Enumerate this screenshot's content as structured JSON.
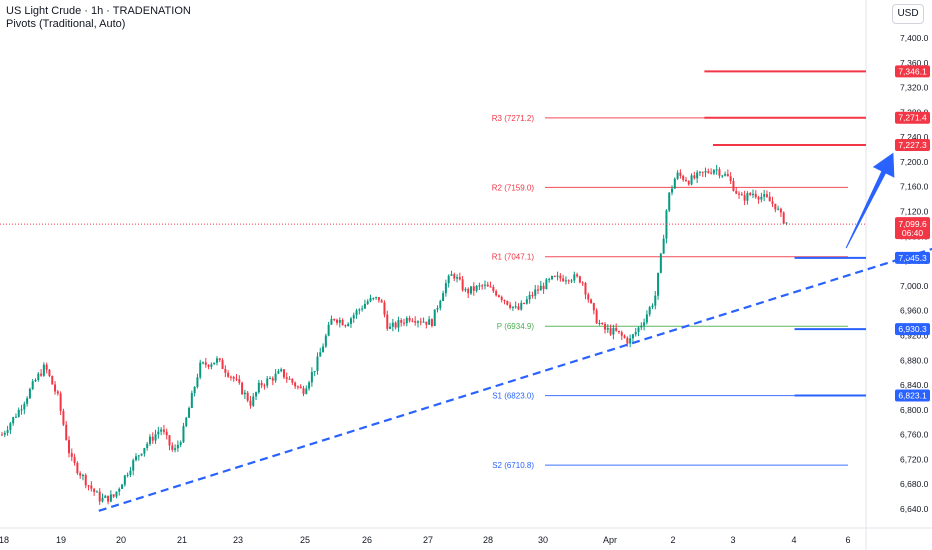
{
  "header": {
    "title": "US Light Crude · 1h · TRADENATION",
    "subtitle": "Pivots (Traditional, Auto)"
  },
  "currency_button": "USD",
  "colors": {
    "up": "#089981",
    "down": "#f23645",
    "pivot_red": "#f23645",
    "pivot_green": "#4caf50",
    "pivot_blue": "#2962ff",
    "trendline": "#2962ff",
    "arrow": "#2962ff"
  },
  "chart_data": {
    "type": "candlestick",
    "symbol": "US Light Crude",
    "interval": "1h",
    "ylim": [
      6620,
      7430
    ],
    "y_ticks": [
      "7,400.0",
      "7,360.0",
      "7,320.0",
      "7,280.0",
      "7,240.0",
      "7,200.0",
      "7,160.0",
      "7,120.0",
      "7,080.0",
      "7,040.0",
      "7,000.0",
      "6,960.0",
      "6,920.0",
      "6,880.0",
      "6,840.0",
      "6,800.0",
      "6,760.0",
      "6,720.0",
      "6,680.0",
      "6,640.0"
    ],
    "x_ticks": [
      "18",
      "19",
      "20",
      "21",
      "23",
      "25",
      "26",
      "27",
      "28",
      "30",
      "Apr",
      "2",
      "3",
      "4",
      "6"
    ],
    "close_path": [
      {
        "x": 0.0,
        "y": 6760
      },
      {
        "x": 0.4,
        "y": 6800
      },
      {
        "x": 0.8,
        "y": 6850
      },
      {
        "x": 1.0,
        "y": 6870
      },
      {
        "x": 1.3,
        "y": 6820
      },
      {
        "x": 1.6,
        "y": 6720
      },
      {
        "x": 2.0,
        "y": 6680
      },
      {
        "x": 2.3,
        "y": 6655
      },
      {
        "x": 2.6,
        "y": 6660
      },
      {
        "x": 3.0,
        "y": 6710
      },
      {
        "x": 3.3,
        "y": 6740
      },
      {
        "x": 3.7,
        "y": 6770
      },
      {
        "x": 4.0,
        "y": 6730
      },
      {
        "x": 4.2,
        "y": 6760
      },
      {
        "x": 4.6,
        "y": 6870
      },
      {
        "x": 5.0,
        "y": 6880
      },
      {
        "x": 5.4,
        "y": 6850
      },
      {
        "x": 5.8,
        "y": 6810
      },
      {
        "x": 6.0,
        "y": 6840
      },
      {
        "x": 6.5,
        "y": 6860
      },
      {
        "x": 7.0,
        "y": 6830
      },
      {
        "x": 7.3,
        "y": 6870
      },
      {
        "x": 7.7,
        "y": 6950
      },
      {
        "x": 8.0,
        "y": 6940
      },
      {
        "x": 8.5,
        "y": 6975
      },
      {
        "x": 8.8,
        "y": 6980
      },
      {
        "x": 9.0,
        "y": 6930
      },
      {
        "x": 9.5,
        "y": 6950
      },
      {
        "x": 10.0,
        "y": 6940
      },
      {
        "x": 10.3,
        "y": 7000
      },
      {
        "x": 10.5,
        "y": 7020
      },
      {
        "x": 10.8,
        "y": 6990
      },
      {
        "x": 11.2,
        "y": 7000
      },
      {
        "x": 11.5,
        "y": 6990
      },
      {
        "x": 12.0,
        "y": 6960
      },
      {
        "x": 12.4,
        "y": 6990
      },
      {
        "x": 12.8,
        "y": 7010
      },
      {
        "x": 13.2,
        "y": 7015
      },
      {
        "x": 13.5,
        "y": 7010
      },
      {
        "x": 13.8,
        "y": 6950
      },
      {
        "x": 14.0,
        "y": 6930
      },
      {
        "x": 14.3,
        "y": 6925
      },
      {
        "x": 14.6,
        "y": 6910
      },
      {
        "x": 14.9,
        "y": 6940
      },
      {
        "x": 15.2,
        "y": 6980
      },
      {
        "x": 15.35,
        "y": 7050
      },
      {
        "x": 15.5,
        "y": 7140
      },
      {
        "x": 15.7,
        "y": 7180
      },
      {
        "x": 16.0,
        "y": 7170
      },
      {
        "x": 16.3,
        "y": 7180
      },
      {
        "x": 16.6,
        "y": 7190
      },
      {
        "x": 16.9,
        "y": 7175
      },
      {
        "x": 17.2,
        "y": 7140
      },
      {
        "x": 17.5,
        "y": 7150
      },
      {
        "x": 17.8,
        "y": 7140
      },
      {
        "x": 18.0,
        "y": 7130
      },
      {
        "x": 18.15,
        "y": 7110
      },
      {
        "x": 18.3,
        "y": 7100
      }
    ],
    "last_price": "7,099.6",
    "countdown": "06:40",
    "pivots": [
      {
        "name": "R3",
        "label": "R3 (7271.2)",
        "value": 7271.2,
        "color": "red"
      },
      {
        "name": "R2",
        "label": "R2 (7159.0)",
        "value": 7159.0,
        "color": "red"
      },
      {
        "name": "R1",
        "label": "R1 (7047.1)",
        "value": 7047.1,
        "color": "red"
      },
      {
        "name": "P",
        "label": "P (6934.9)",
        "value": 6934.9,
        "color": "green"
      },
      {
        "name": "S1",
        "label": "S1 (6823.0)",
        "value": 6823.0,
        "color": "blue"
      },
      {
        "name": "S2",
        "label": "S2 (6710.8)",
        "value": 6710.8,
        "color": "blue"
      }
    ],
    "horizontal_levels": [
      {
        "label": "7,346.1",
        "value": 7346.1,
        "color": "red",
        "x_start": 16.4
      },
      {
        "label": "7,271.4",
        "value": 7271.4,
        "color": "red",
        "x_start": 16.4
      },
      {
        "label": "7,227.3",
        "value": 7227.3,
        "color": "red",
        "x_start": 16.6
      },
      {
        "label": "7,045.3",
        "value": 7045.3,
        "color": "blue",
        "x_start": 18.5
      },
      {
        "label": "6,930.3",
        "value": 6930.3,
        "color": "blue",
        "x_start": 18.5
      },
      {
        "label": "6,823.1",
        "value": 6823.1,
        "color": "blue",
        "x_start": 18.5
      }
    ],
    "trendline": {
      "from": {
        "x": 2.3,
        "y": 6637
      },
      "to": {
        "x": 22.5,
        "y": 7077
      }
    },
    "arrow": {
      "from": {
        "x": 19.7,
        "y": 7061
      },
      "to": {
        "x": 20.8,
        "y": 7215
      }
    },
    "grid": false,
    "legend": "top-left"
  }
}
